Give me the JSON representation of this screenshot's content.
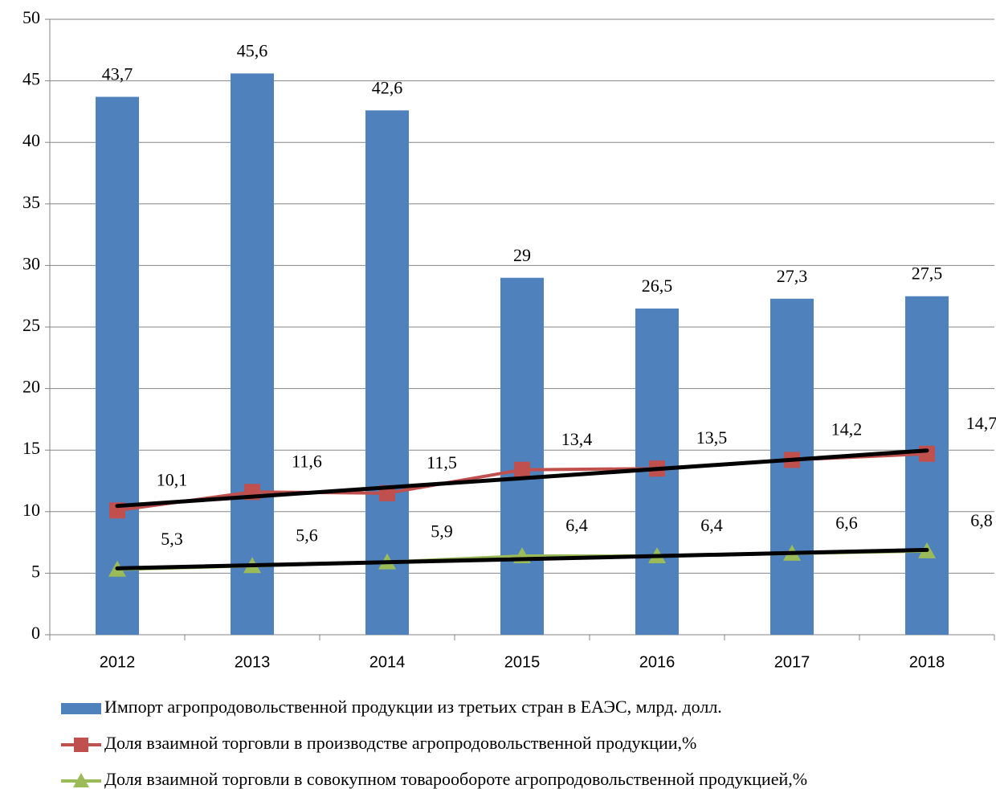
{
  "chart_data": {
    "type": "bar",
    "categories": [
      "2012",
      "2013",
      "2014",
      "2015",
      "2016",
      "2017",
      "2018"
    ],
    "series": [
      {
        "name": "Импорт агропродовольственной продукции из третьих стран в ЕАЭС, млрд. долл.",
        "type": "bar",
        "color": "#4f81bd",
        "values": [
          43.7,
          45.6,
          42.6,
          29,
          26.5,
          27.3,
          27.5
        ],
        "value_labels": [
          "43,7",
          "45,6",
          "42,6",
          "29",
          "26,5",
          "27,3",
          "27,5"
        ]
      },
      {
        "name": "Доля взаимной торговли в производстве агропродовольственной продукции,%",
        "type": "line",
        "marker": "square",
        "color": "#c0504d",
        "trendline": true,
        "values": [
          10.1,
          11.6,
          11.5,
          13.4,
          13.5,
          14.2,
          14.7
        ],
        "value_labels": [
          "10,1",
          "11,6",
          "11,5",
          "13,4",
          "13,5",
          "14,2",
          "14,7"
        ]
      },
      {
        "name": "Доля взаимной торговли в совокупном товарообороте агропродовольственной продукцией,%",
        "type": "line",
        "marker": "triangle",
        "color": "#9bbb59",
        "trendline": true,
        "values": [
          5.3,
          5.6,
          5.9,
          6.4,
          6.4,
          6.6,
          6.8
        ],
        "value_labels": [
          "5,3",
          "5,6",
          "5,9",
          "6,4",
          "6,4",
          "6,6",
          "6,8"
        ]
      }
    ],
    "ylim": [
      0,
      50
    ],
    "yticks": [
      0,
      5,
      10,
      15,
      20,
      25,
      30,
      35,
      40,
      45,
      50
    ],
    "grid": true,
    "trend_color": "#000000",
    "legend": "bottom"
  }
}
